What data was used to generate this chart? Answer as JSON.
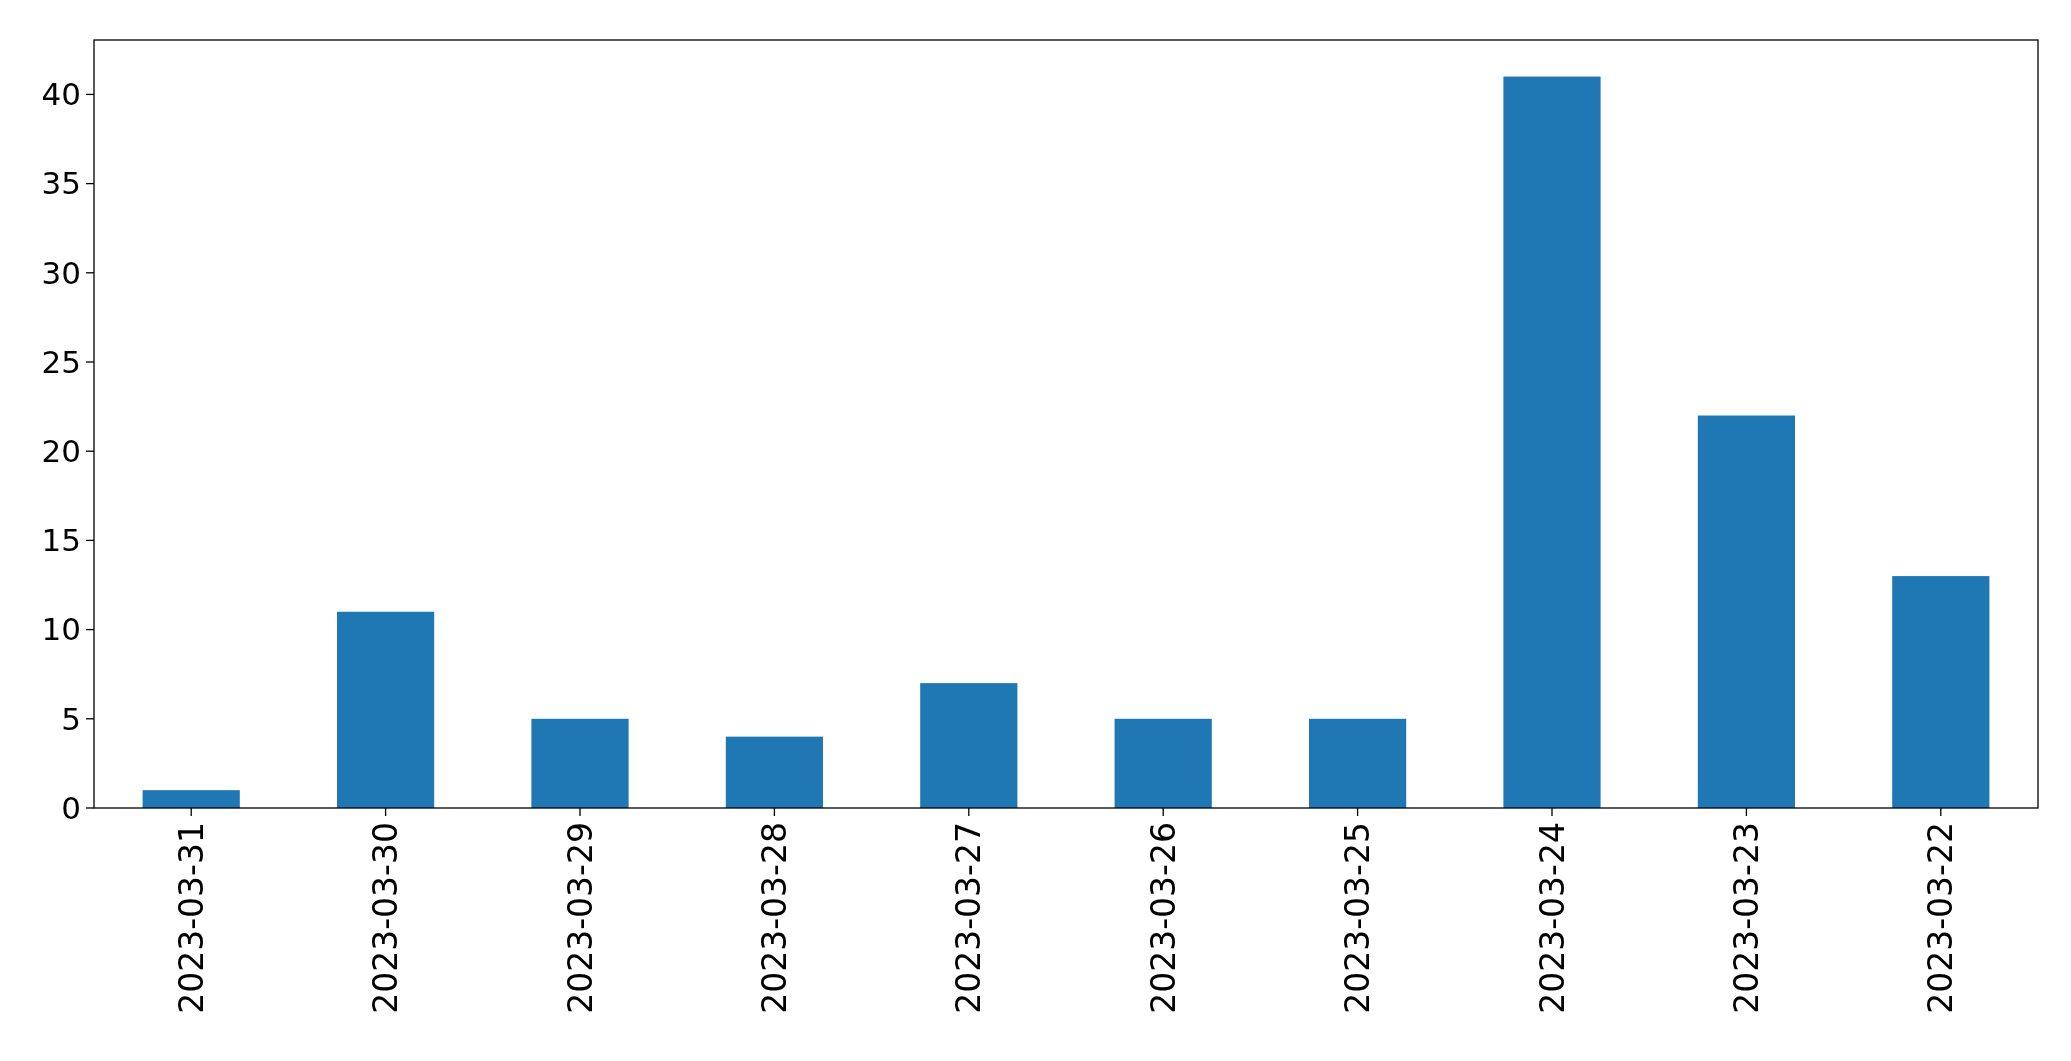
{
  "chart_data": {
    "type": "bar",
    "categories": [
      "2023-03-31",
      "2023-03-30",
      "2023-03-29",
      "2023-03-28",
      "2023-03-27",
      "2023-03-26",
      "2023-03-25",
      "2023-03-24",
      "2023-03-23",
      "2023-03-22"
    ],
    "values": [
      1,
      11,
      5,
      4,
      7,
      5,
      5,
      41,
      22,
      13
    ],
    "color": "#1f77b4",
    "ylim": [
      0,
      43.05
    ],
    "yticks": [
      0,
      5,
      10,
      15,
      20,
      25,
      30,
      35,
      40
    ],
    "grid": false
  }
}
